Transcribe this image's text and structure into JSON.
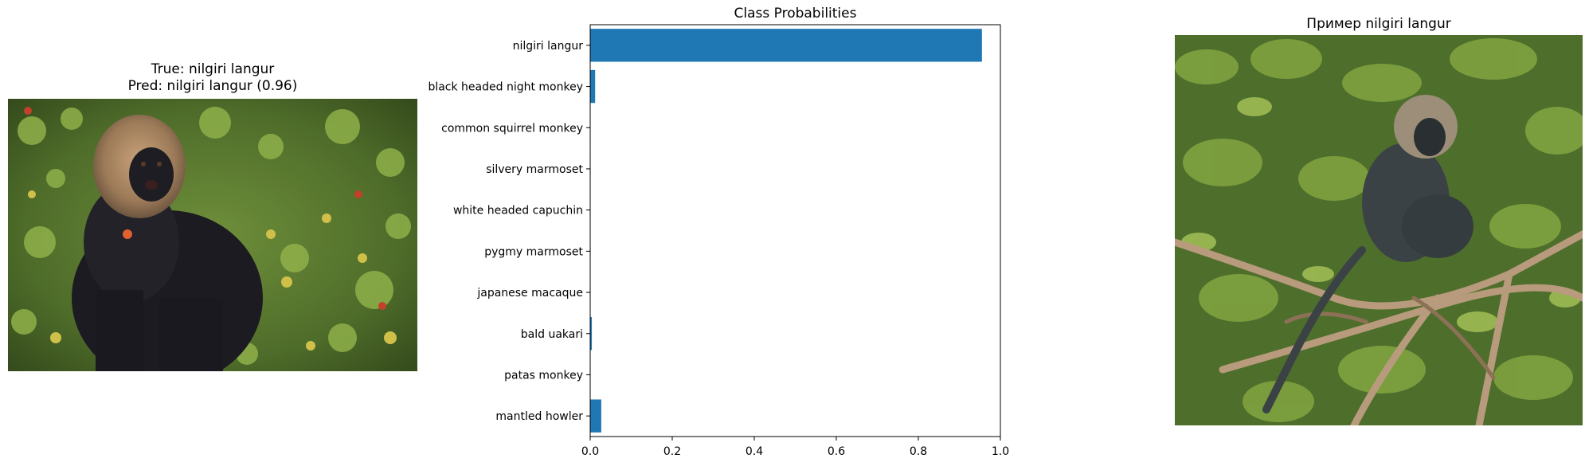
{
  "left_panel": {
    "title_line1": "True: nilgiri langur",
    "title_line2": "Pred: nilgiri langur (0.96)",
    "photo_icon": "monkey-photo"
  },
  "right_panel": {
    "title": "Пример nilgiri langur",
    "photo_icon": "monkey-photo"
  },
  "chart_data": {
    "type": "bar",
    "orientation": "horizontal",
    "title": "Class Probabilities",
    "categories": [
      "nilgiri langur",
      "black headed night monkey",
      "common squirrel monkey",
      "silvery marmoset",
      "white headed capuchin",
      "pygmy marmoset",
      "japanese macaque",
      "bald uakari",
      "patas monkey",
      "mantled howler"
    ],
    "values": [
      0.955,
      0.012,
      0.001,
      0.001,
      0.001,
      0.001,
      0.001,
      0.004,
      0.001,
      0.027
    ],
    "xlim": [
      0,
      1.0
    ],
    "xticks": [
      "0.0",
      "0.2",
      "0.4",
      "0.6",
      "0.8",
      "1.0"
    ],
    "xlabel": "",
    "ylabel": "",
    "grid": false,
    "bar_color": "#1f77b4"
  }
}
